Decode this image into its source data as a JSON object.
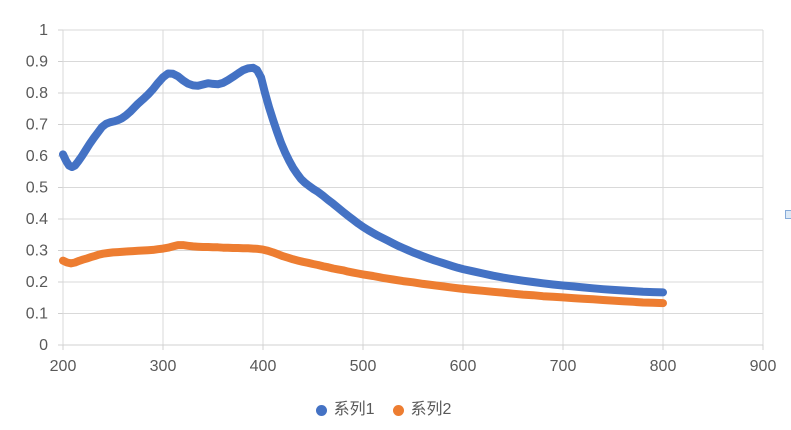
{
  "chart_data": {
    "type": "scatter",
    "title": "",
    "xlabel": "",
    "ylabel": "",
    "xlim": [
      200,
      900
    ],
    "ylim": [
      0,
      1
    ],
    "grid": true,
    "legend_position": "bottom",
    "x_ticks": [
      200,
      300,
      400,
      500,
      600,
      700,
      800,
      900
    ],
    "x_tick_labels": [
      "200",
      "300",
      "400",
      "500",
      "600",
      "700",
      "800",
      "900"
    ],
    "y_ticks": [
      0,
      0.1,
      0.2,
      0.3,
      0.4,
      0.5,
      0.6,
      0.7,
      0.8,
      0.9,
      1
    ],
    "y_tick_labels": [
      "0",
      "0.1",
      "0.2",
      "0.3",
      "0.4",
      "0.5",
      "0.6",
      "0.7",
      "0.8",
      "0.9",
      "1"
    ],
    "axis_label_color": "#595959",
    "grid_color": "#d9d9d9",
    "axis_line_color": "#d0d0d0",
    "background_color": "#ffffff",
    "series": [
      {
        "name": "系列1",
        "color": "#4472C4",
        "points": [
          [
            200,
            0.605
          ],
          [
            203,
            0.585
          ],
          [
            206,
            0.57
          ],
          [
            209,
            0.565
          ],
          [
            212,
            0.57
          ],
          [
            215,
            0.582
          ],
          [
            219,
            0.6
          ],
          [
            223,
            0.62
          ],
          [
            227,
            0.64
          ],
          [
            231,
            0.658
          ],
          [
            235,
            0.675
          ],
          [
            239,
            0.692
          ],
          [
            243,
            0.702
          ],
          [
            247,
            0.707
          ],
          [
            251,
            0.71
          ],
          [
            255,
            0.714
          ],
          [
            259,
            0.72
          ],
          [
            263,
            0.729
          ],
          [
            267,
            0.74
          ],
          [
            271,
            0.753
          ],
          [
            275,
            0.766
          ],
          [
            280,
            0.78
          ],
          [
            285,
            0.795
          ],
          [
            290,
            0.812
          ],
          [
            295,
            0.832
          ],
          [
            300,
            0.85
          ],
          [
            305,
            0.862
          ],
          [
            310,
            0.861
          ],
          [
            315,
            0.853
          ],
          [
            320,
            0.84
          ],
          [
            325,
            0.83
          ],
          [
            330,
            0.824
          ],
          [
            335,
            0.823
          ],
          [
            340,
            0.827
          ],
          [
            345,
            0.831
          ],
          [
            350,
            0.829
          ],
          [
            355,
            0.828
          ],
          [
            360,
            0.832
          ],
          [
            365,
            0.841
          ],
          [
            370,
            0.851
          ],
          [
            375,
            0.862
          ],
          [
            380,
            0.872
          ],
          [
            385,
            0.878
          ],
          [
            390,
            0.88
          ],
          [
            394,
            0.873
          ],
          [
            398,
            0.85
          ],
          [
            402,
            0.8
          ],
          [
            406,
            0.755
          ],
          [
            410,
            0.715
          ],
          [
            414,
            0.677
          ],
          [
            418,
            0.642
          ],
          [
            422,
            0.612
          ],
          [
            426,
            0.586
          ],
          [
            430,
            0.563
          ],
          [
            434,
            0.544
          ],
          [
            438,
            0.527
          ],
          [
            442,
            0.515
          ],
          [
            446,
            0.505
          ],
          [
            450,
            0.496
          ],
          [
            455,
            0.486
          ],
          [
            460,
            0.474
          ],
          [
            465,
            0.461
          ],
          [
            470,
            0.449
          ],
          [
            475,
            0.436
          ],
          [
            480,
            0.423
          ],
          [
            485,
            0.41
          ],
          [
            490,
            0.398
          ],
          [
            495,
            0.386
          ],
          [
            500,
            0.375
          ],
          [
            505,
            0.365
          ],
          [
            510,
            0.356
          ],
          [
            515,
            0.347
          ],
          [
            520,
            0.339
          ],
          [
            525,
            0.331
          ],
          [
            530,
            0.323
          ],
          [
            535,
            0.315
          ],
          [
            540,
            0.308
          ],
          [
            545,
            0.301
          ],
          [
            550,
            0.294
          ],
          [
            555,
            0.288
          ],
          [
            560,
            0.282
          ],
          [
            565,
            0.276
          ],
          [
            570,
            0.27
          ],
          [
            575,
            0.265
          ],
          [
            580,
            0.26
          ],
          [
            585,
            0.255
          ],
          [
            590,
            0.25
          ],
          [
            595,
            0.245
          ],
          [
            600,
            0.241
          ],
          [
            610,
            0.234
          ],
          [
            620,
            0.227
          ],
          [
            630,
            0.22
          ],
          [
            640,
            0.214
          ],
          [
            650,
            0.209
          ],
          [
            660,
            0.204
          ],
          [
            670,
            0.2
          ],
          [
            680,
            0.196
          ],
          [
            690,
            0.192
          ],
          [
            700,
            0.189
          ],
          [
            710,
            0.186
          ],
          [
            720,
            0.183
          ],
          [
            730,
            0.18
          ],
          [
            740,
            0.177
          ],
          [
            750,
            0.175
          ],
          [
            760,
            0.173
          ],
          [
            770,
            0.171
          ],
          [
            780,
            0.169
          ],
          [
            790,
            0.168
          ],
          [
            800,
            0.167
          ]
        ]
      },
      {
        "name": "系列2",
        "color": "#ED7D31",
        "points": [
          [
            200,
            0.268
          ],
          [
            204,
            0.262
          ],
          [
            208,
            0.259
          ],
          [
            212,
            0.262
          ],
          [
            216,
            0.267
          ],
          [
            220,
            0.271
          ],
          [
            224,
            0.275
          ],
          [
            228,
            0.279
          ],
          [
            232,
            0.283
          ],
          [
            236,
            0.287
          ],
          [
            240,
            0.29
          ],
          [
            245,
            0.292
          ],
          [
            250,
            0.294
          ],
          [
            255,
            0.295
          ],
          [
            260,
            0.296
          ],
          [
            265,
            0.297
          ],
          [
            270,
            0.298
          ],
          [
            275,
            0.299
          ],
          [
            280,
            0.3
          ],
          [
            285,
            0.301
          ],
          [
            290,
            0.302
          ],
          [
            295,
            0.304
          ],
          [
            300,
            0.306
          ],
          [
            305,
            0.309
          ],
          [
            310,
            0.313
          ],
          [
            315,
            0.317
          ],
          [
            320,
            0.317
          ],
          [
            325,
            0.315
          ],
          [
            330,
            0.313
          ],
          [
            335,
            0.312
          ],
          [
            340,
            0.311
          ],
          [
            345,
            0.311
          ],
          [
            350,
            0.31
          ],
          [
            355,
            0.31
          ],
          [
            360,
            0.309
          ],
          [
            365,
            0.309
          ],
          [
            370,
            0.308
          ],
          [
            375,
            0.308
          ],
          [
            380,
            0.307
          ],
          [
            385,
            0.307
          ],
          [
            390,
            0.306
          ],
          [
            395,
            0.305
          ],
          [
            400,
            0.303
          ],
          [
            405,
            0.299
          ],
          [
            410,
            0.294
          ],
          [
            415,
            0.288
          ],
          [
            420,
            0.282
          ],
          [
            425,
            0.277
          ],
          [
            430,
            0.272
          ],
          [
            435,
            0.268
          ],
          [
            440,
            0.264
          ],
          [
            445,
            0.261
          ],
          [
            450,
            0.257
          ],
          [
            455,
            0.254
          ],
          [
            460,
            0.25
          ],
          [
            465,
            0.247
          ],
          [
            470,
            0.243
          ],
          [
            475,
            0.24
          ],
          [
            480,
            0.237
          ],
          [
            485,
            0.233
          ],
          [
            490,
            0.23
          ],
          [
            495,
            0.227
          ],
          [
            500,
            0.224
          ],
          [
            510,
            0.219
          ],
          [
            520,
            0.213
          ],
          [
            530,
            0.208
          ],
          [
            540,
            0.203
          ],
          [
            550,
            0.199
          ],
          [
            560,
            0.194
          ],
          [
            570,
            0.19
          ],
          [
            580,
            0.186
          ],
          [
            590,
            0.182
          ],
          [
            600,
            0.178
          ],
          [
            610,
            0.175
          ],
          [
            620,
            0.172
          ],
          [
            630,
            0.169
          ],
          [
            640,
            0.166
          ],
          [
            650,
            0.163
          ],
          [
            660,
            0.16
          ],
          [
            670,
            0.158
          ],
          [
            680,
            0.155
          ],
          [
            690,
            0.153
          ],
          [
            700,
            0.151
          ],
          [
            710,
            0.149
          ],
          [
            720,
            0.147
          ],
          [
            730,
            0.145
          ],
          [
            740,
            0.143
          ],
          [
            750,
            0.141
          ],
          [
            760,
            0.139
          ],
          [
            770,
            0.137
          ],
          [
            780,
            0.135
          ],
          [
            790,
            0.134
          ],
          [
            800,
            0.133
          ]
        ]
      }
    ]
  },
  "legend": {
    "items": [
      {
        "label": "系列1",
        "color": "#4472C4"
      },
      {
        "label": "系列2",
        "color": "#ED7D31"
      }
    ]
  },
  "edge_fragment": {
    "description": "partially visible small blue square at right edge",
    "border_color": "#3a66ad",
    "fill_color": "#dce9f6"
  }
}
